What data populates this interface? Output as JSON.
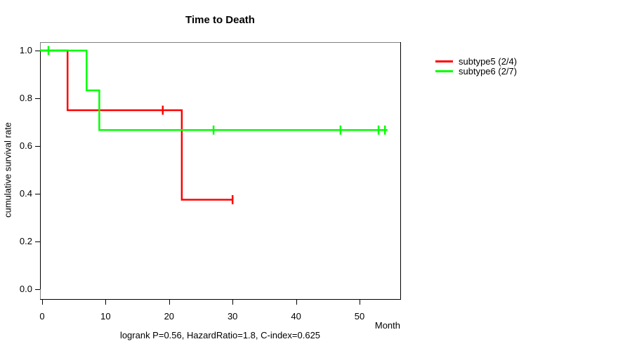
{
  "chart_data": {
    "type": "line",
    "variant": "kaplan-meier-step",
    "title": "Time to Death",
    "xlabel": "Month",
    "ylabel": "cumulative survival rate",
    "footnote": "logrank P=0.56, HazardRatio=1.8, C-index=0.625",
    "xlim": [
      0,
      56
    ],
    "ylim": [
      0,
      1
    ],
    "grid": false,
    "legend_position": "right-outside-top",
    "x_ticks": [
      {
        "v": 0,
        "label": "0"
      },
      {
        "v": 10,
        "label": "10"
      },
      {
        "v": 20,
        "label": "20"
      },
      {
        "v": 30,
        "label": "30"
      },
      {
        "v": 40,
        "label": "40"
      },
      {
        "v": 50,
        "label": "50"
      }
    ],
    "y_ticks": [
      {
        "v": 0.0,
        "label": "0.0"
      },
      {
        "v": 0.2,
        "label": "0.2"
      },
      {
        "v": 0.4,
        "label": "0.4"
      },
      {
        "v": 0.6,
        "label": "0.6"
      },
      {
        "v": 0.8,
        "label": "0.8"
      },
      {
        "v": 1.0,
        "label": "1.0"
      }
    ],
    "series": [
      {
        "name": "subtype5",
        "legend_label": "subtype5 (2/4)",
        "color": "#ff0000",
        "steps": [
          [
            0,
            1.0
          ],
          [
            4,
            1.0
          ],
          [
            4,
            0.75
          ],
          [
            22,
            0.75
          ],
          [
            22,
            0.375
          ],
          [
            30,
            0.375
          ]
        ],
        "censor_marks": [
          [
            19,
            0.75
          ],
          [
            30,
            0.375
          ]
        ]
      },
      {
        "name": "subtype6",
        "legend_label": "subtype6 (2/7)",
        "color": "#00ff00",
        "steps": [
          [
            0,
            1.0
          ],
          [
            7,
            1.0
          ],
          [
            7,
            0.8333
          ],
          [
            9,
            0.8333
          ],
          [
            9,
            0.6667
          ],
          [
            54.4,
            0.6667
          ]
        ],
        "censor_marks": [
          [
            1,
            1.0
          ],
          [
            27,
            0.6667
          ],
          [
            47,
            0.6667
          ],
          [
            53,
            0.6667
          ],
          [
            54,
            0.6667
          ]
        ]
      }
    ],
    "colors": {
      "axis": "#000000",
      "box": "#808080",
      "text": "#000000",
      "background": "#ffffff"
    }
  }
}
